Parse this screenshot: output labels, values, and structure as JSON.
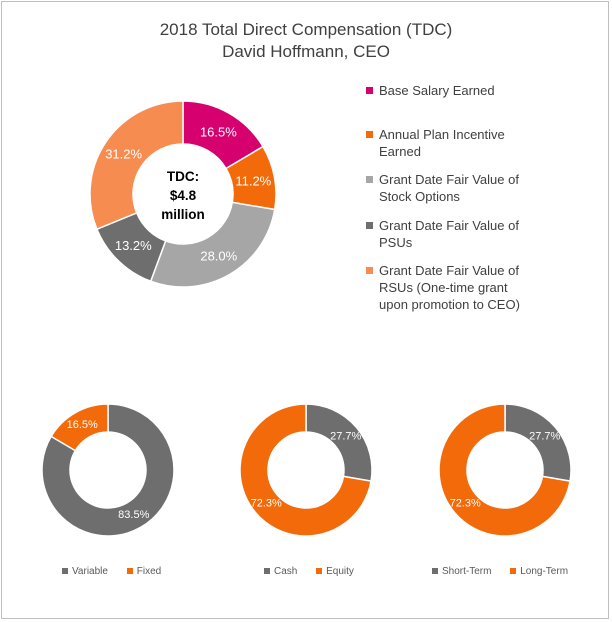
{
  "chart_data": [
    {
      "type": "pie",
      "title": "2018 Total Direct Compensation (TDC)",
      "subtitle": "David Hoffmann, CEO",
      "center_label": [
        "TDC:",
        "$4.8",
        "million"
      ],
      "slices": [
        {
          "label": "Base Salary Earned",
          "value": 16.5,
          "display": "16.5%",
          "color": "#d6006f"
        },
        {
          "label": "Annual Plan Incentive Earned",
          "value": 11.2,
          "display": "11.2%",
          "color": "#f26a0a"
        },
        {
          "label": "Grant Date Fair Value of Stock Options",
          "value": 28.0,
          "display": "28.0%",
          "color": "#a6a6a6"
        },
        {
          "label": "Grant Date Fair Value of PSUs",
          "value": 13.2,
          "display": "13.2%",
          "color": "#6e6e6e"
        },
        {
          "label": "Grant Date Fair Value of RSUs (One-time grant upon promotion to CEO)",
          "value": 31.2,
          "display": "31.2%",
          "color": "#f78c50"
        }
      ],
      "legend": "right"
    },
    {
      "type": "pie",
      "slices": [
        {
          "label": "Variable",
          "value": 83.5,
          "display": "83.5%",
          "color": "#6e6e6e"
        },
        {
          "label": "Fixed",
          "value": 16.5,
          "display": "16.5%",
          "color": "#f26a0a"
        }
      ],
      "legend": "bottom"
    },
    {
      "type": "pie",
      "slices": [
        {
          "label": "Cash",
          "value": 27.7,
          "display": "27.7%",
          "color": "#6e6e6e"
        },
        {
          "label": "Equity",
          "value": 72.3,
          "display": "72.3%",
          "color": "#f26a0a"
        }
      ],
      "legend": "bottom"
    },
    {
      "type": "pie",
      "slices": [
        {
          "label": "Short-Term",
          "value": 27.7,
          "display": "27.7%",
          "color": "#6e6e6e"
        },
        {
          "label": "Long-Term",
          "value": 72.3,
          "display": "72.3%",
          "color": "#f26a0a"
        }
      ],
      "legend": "bottom"
    }
  ]
}
